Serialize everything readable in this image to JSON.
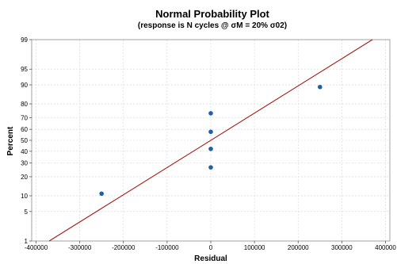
{
  "chart_data": {
    "type": "scatter",
    "title": "Normal Probability Plot",
    "subtitle": "(response is N cycles @ σM = 20% σ02)",
    "xlabel": "Residual",
    "ylabel": "Percent",
    "xlim": [
      -410000,
      410000
    ],
    "ylim": [
      1,
      99
    ],
    "y_scale": "normal-probability",
    "grid": true,
    "x_ticks": [
      -400000,
      -300000,
      -200000,
      -100000,
      0,
      100000,
      200000,
      300000,
      400000
    ],
    "x_tick_labels": [
      "-400000",
      "-300000",
      "-200000",
      "-100000",
      "0",
      "100000",
      "200000",
      "300000",
      "400000"
    ],
    "y_ticks": [
      1,
      5,
      10,
      20,
      30,
      40,
      50,
      60,
      70,
      80,
      90,
      95,
      99
    ],
    "y_tick_labels": [
      "1",
      "5",
      "10",
      "20",
      "30",
      "40",
      "50",
      "60",
      "70",
      "80",
      "90",
      "95",
      "99"
    ],
    "points": [
      {
        "x": -250000,
        "y": 10.9
      },
      {
        "x": 0,
        "y": 26.6
      },
      {
        "x": 0,
        "y": 42.2
      },
      {
        "x": 0,
        "y": 57.8
      },
      {
        "x": 0,
        "y": 73.4
      },
      {
        "x": 250000,
        "y": 89.1
      }
    ],
    "fit_line": {
      "x": [
        -370000,
        370000
      ],
      "y": [
        1,
        99
      ]
    },
    "point_color": "#1f5fa8",
    "line_color": "#a31a1a",
    "grid_color": "#d4d4d4"
  }
}
